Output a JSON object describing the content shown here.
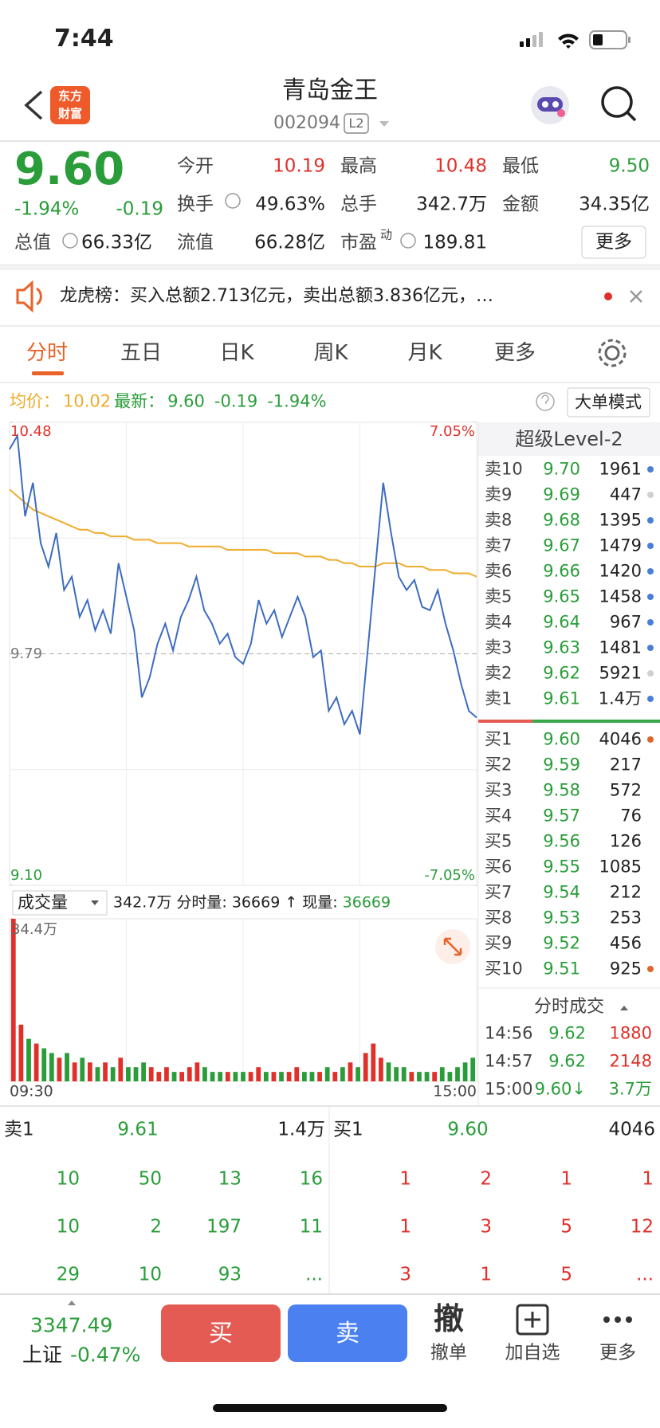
{
  "status_bar": {
    "time": "7:44"
  },
  "header": {
    "logo_top": "东方",
    "logo_bottom": "财富",
    "title": "青岛金王",
    "code": "002094",
    "badge": "L2"
  },
  "quote": {
    "price": "9.60",
    "change_pct": "-1.94%",
    "change": "-0.19",
    "open_label": "今开",
    "open": "10.19",
    "high_label": "最高",
    "high": "10.48",
    "low_label": "最低",
    "low": "9.50",
    "turnover_label": "换手",
    "turnover": "49.63%",
    "volume_label": "总手",
    "volume": "342.7万",
    "amount_label": "金额",
    "amount": "34.35亿",
    "mktcap_label": "总值",
    "mktcap": "66.33亿",
    "float_label": "流值",
    "float": "66.28亿",
    "pe_label": "市盈",
    "pe_sup": "动",
    "pe": "189.81",
    "more": "更多"
  },
  "notice": {
    "text": "龙虎榜：买入总额2.713亿元，卖出总额3.836亿元，…"
  },
  "tabs": [
    "分时",
    "五日",
    "日K",
    "周K",
    "月K",
    "更多"
  ],
  "info_bar": {
    "avg_label": "均价：",
    "avg": "10.02",
    "latest_label": "最新：",
    "latest": "9.60",
    "change": "-0.19",
    "pct": "-1.94%",
    "mode": "大单模式"
  },
  "chart_data": [
    {
      "type": "line",
      "ylim": [
        9.1,
        10.48
      ],
      "yticks": [
        {
          "value": 9.1,
          "label": "9.10"
        },
        9.79,
        10.48
      ],
      "y2lim": [
        -7.05,
        7.05
      ],
      "y2ticks": [
        {
          "value": -7.05,
          "label": "-7.05%"
        },
        {
          "value": 7.05,
          "label": "7.05%"
        }
      ],
      "grid": true,
      "series": [
        {
          "color": "#3d6cc0",
          "values": [
            10.4,
            10.44,
            10.2,
            10.3,
            10.12,
            10.05,
            10.15,
            9.98,
            10.02,
            9.9,
            9.95,
            9.86,
            9.92,
            9.85,
            10.06,
            9.96,
            9.86,
            9.66,
            9.72,
            9.82,
            9.88,
            9.8,
            9.9,
            9.95,
            10.02,
            9.92,
            9.88,
            9.82,
            9.85,
            9.78,
            9.76,
            9.82,
            9.95,
            9.88,
            9.92,
            9.84,
            9.9,
            9.96,
            9.9,
            9.78,
            9.8,
            9.62,
            9.66,
            9.58,
            9.62,
            9.55,
            9.8,
            10.05,
            10.3,
            10.15,
            10.02,
            9.98,
            10.01,
            9.93,
            9.92,
            9.98,
            9.88,
            9.8,
            9.7,
            9.62,
            9.6
          ]
        },
        {
          "color": "#f0ac2c",
          "values": [
            10.28,
            10.26,
            10.24,
            10.22,
            10.21,
            10.2,
            10.19,
            10.18,
            10.17,
            10.16,
            10.16,
            10.15,
            10.15,
            10.14,
            10.14,
            10.14,
            10.13,
            10.13,
            10.13,
            10.12,
            10.12,
            10.12,
            10.12,
            10.11,
            10.11,
            10.11,
            10.11,
            10.11,
            10.1,
            10.1,
            10.1,
            10.1,
            10.1,
            10.1,
            10.09,
            10.09,
            10.09,
            10.09,
            10.08,
            10.08,
            10.08,
            10.07,
            10.07,
            10.06,
            10.06,
            10.05,
            10.05,
            10.05,
            10.06,
            10.06,
            10.06,
            10.05,
            10.05,
            10.05,
            10.04,
            10.04,
            10.04,
            10.03,
            10.03,
            10.03,
            10.02
          ]
        }
      ]
    },
    {
      "type": "bar",
      "title": "成交量",
      "volume_total": "342.7万",
      "split_label": "分时量: 36669 ↑",
      "current_label": "现量:",
      "current": "36669",
      "ylim": [
        0,
        34.4
      ],
      "yticks": [
        {
          "value": 34.4,
          "label": "34.4万"
        }
      ],
      "x_labels": [
        "09:30",
        "15:00"
      ],
      "up_color": "#e0302a",
      "down_color": "#2a9d3a",
      "values": [
        34.4,
        12,
        9,
        8,
        7,
        6,
        5,
        6,
        4,
        5,
        4,
        3,
        4,
        3,
        5,
        3,
        3,
        4,
        3,
        2,
        3,
        2,
        2,
        3,
        4,
        3,
        2,
        2,
        2,
        2,
        2,
        2,
        3,
        2,
        2,
        2,
        2,
        3,
        2,
        2,
        2,
        3,
        2,
        3,
        4,
        3,
        6,
        8,
        5,
        4,
        3,
        3,
        2,
        2,
        2,
        2,
        3,
        2,
        3,
        4,
        5
      ]
    }
  ],
  "order_book": {
    "title": "超级Level-2",
    "asks": [
      {
        "label": "卖10",
        "price": "9.70",
        "volume": "1961",
        "dot": "#4a7fd8"
      },
      {
        "label": "卖9",
        "price": "9.69",
        "volume": "447",
        "dot": "#d0d0d0"
      },
      {
        "label": "卖8",
        "price": "9.68",
        "volume": "1395",
        "dot": "#4a7fd8"
      },
      {
        "label": "卖7",
        "price": "9.67",
        "volume": "1479",
        "dot": "#4a7fd8"
      },
      {
        "label": "卖6",
        "price": "9.66",
        "volume": "1420",
        "dot": "#4a7fd8"
      },
      {
        "label": "卖5",
        "price": "9.65",
        "volume": "1458",
        "dot": "#4a7fd8"
      },
      {
        "label": "卖4",
        "price": "9.64",
        "volume": "967",
        "dot": "#4a7fd8"
      },
      {
        "label": "卖3",
        "price": "9.63",
        "volume": "1481",
        "dot": "#4a7fd8"
      },
      {
        "label": "卖2",
        "price": "9.62",
        "volume": "5921",
        "dot": "#d0d0d0"
      },
      {
        "label": "卖1",
        "price": "9.61",
        "volume": "1.4万",
        "dot": "#4a7fd8"
      }
    ],
    "bids": [
      {
        "label": "买1",
        "price": "9.60",
        "volume": "4046",
        "dot": "#e0642a"
      },
      {
        "label": "买2",
        "price": "9.59",
        "volume": "217",
        "dot": null
      },
      {
        "label": "买3",
        "price": "9.58",
        "volume": "572",
        "dot": null
      },
      {
        "label": "买4",
        "price": "9.57",
        "volume": "76",
        "dot": null
      },
      {
        "label": "买5",
        "price": "9.56",
        "volume": "126",
        "dot": null
      },
      {
        "label": "买6",
        "price": "9.55",
        "volume": "1085",
        "dot": null
      },
      {
        "label": "买7",
        "price": "9.54",
        "volume": "212",
        "dot": null
      },
      {
        "label": "买8",
        "price": "9.53",
        "volume": "253",
        "dot": null
      },
      {
        "label": "买9",
        "price": "9.52",
        "volume": "456",
        "dot": null
      },
      {
        "label": "买10",
        "price": "9.51",
        "volume": "925",
        "dot": "#e0642a"
      }
    ],
    "trades_title": "分时成交",
    "trades": [
      {
        "time": "14:56",
        "price": "9.62",
        "volume": "1880",
        "volume_color": "#e0302a"
      },
      {
        "time": "14:57",
        "price": "9.62",
        "volume": "2148",
        "volume_color": "#e0302a"
      },
      {
        "time": "15:00",
        "price": "9.60↓",
        "volume": "3.7万",
        "volume_color": "#2a9d3a"
      }
    ]
  },
  "queue": {
    "ask_label": "卖1",
    "ask_price": "9.61",
    "ask_volume": "1.4万",
    "bid_label": "买1",
    "bid_price": "9.60",
    "bid_volume": "4046",
    "ask_rows": [
      [
        "10",
        "50",
        "13",
        "16"
      ],
      [
        "10",
        "2",
        "197",
        "11"
      ],
      [
        "29",
        "10",
        "93",
        "..."
      ]
    ],
    "bid_rows": [
      [
        "1",
        "2",
        "1",
        "1"
      ],
      [
        "1",
        "3",
        "5",
        "12"
      ],
      [
        "3",
        "1",
        "5",
        "..."
      ]
    ]
  },
  "nav": {
    "index_value": "3347.49",
    "index_name": "上证",
    "index_change": "-0.47%",
    "buy": "买",
    "sell": "卖",
    "cancel_icon": "撤",
    "cancel": "撤单",
    "watch": "加自选",
    "more": "更多"
  }
}
